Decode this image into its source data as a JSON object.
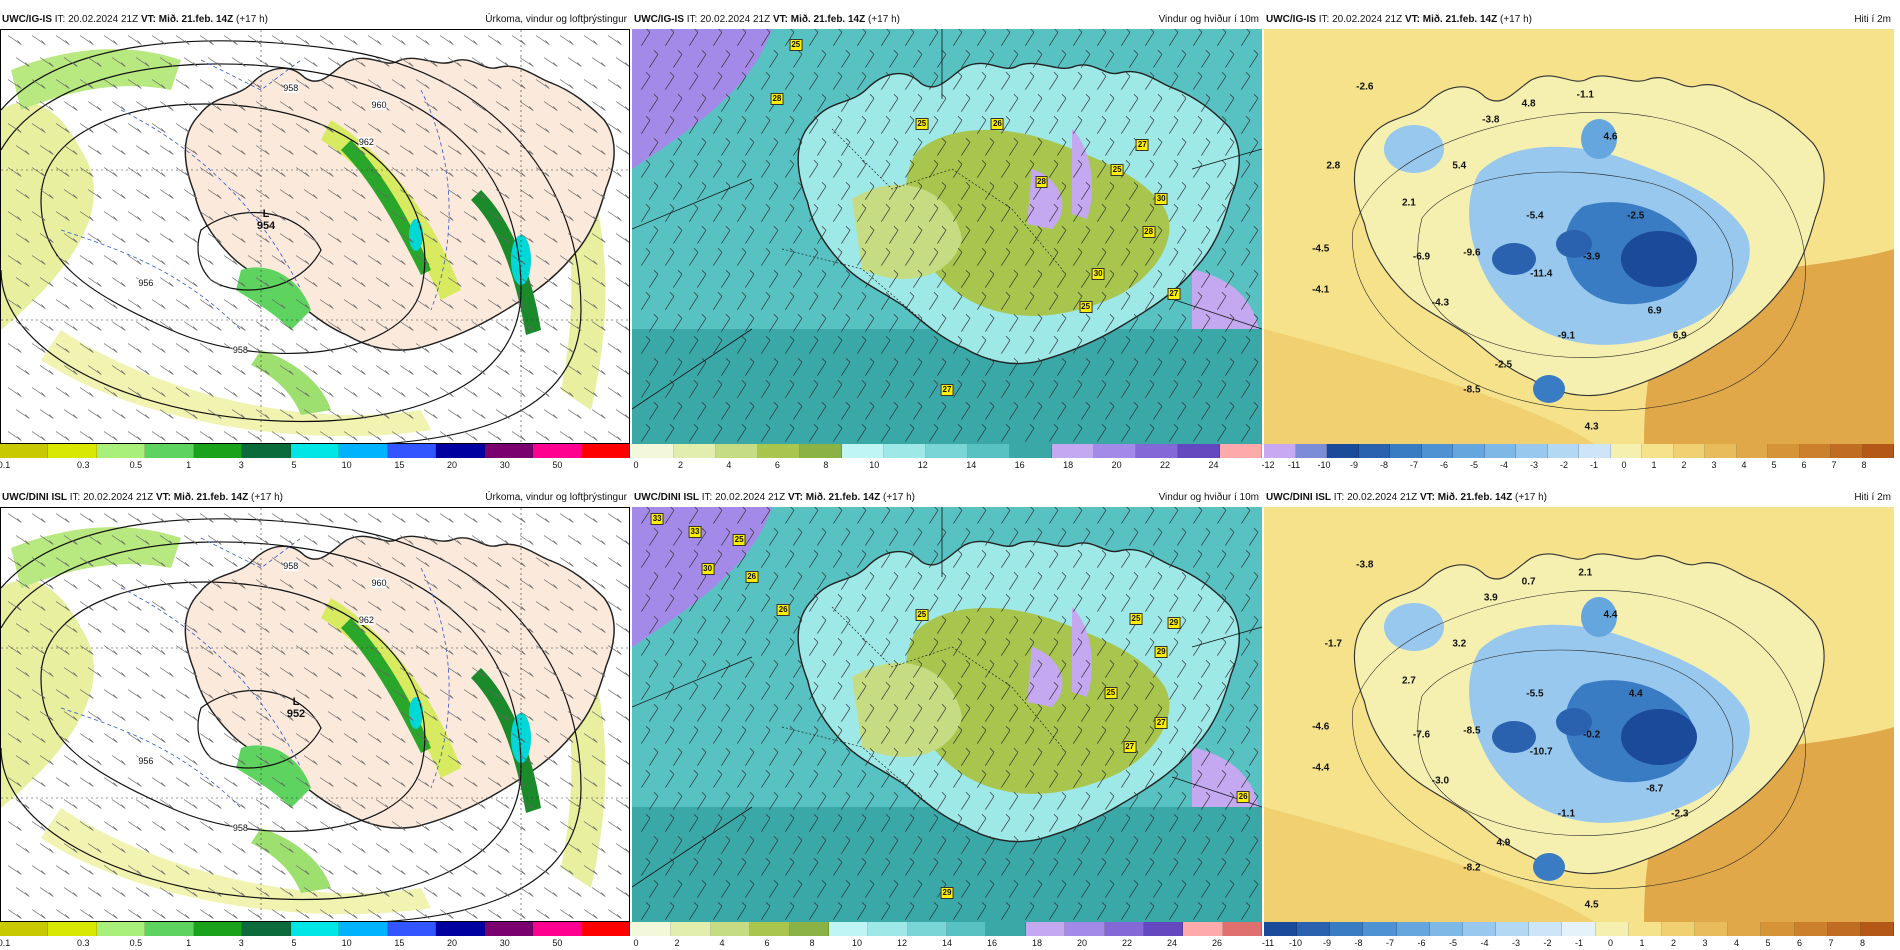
{
  "panels": [
    {
      "id": "p0",
      "model": "UWC/IG-IS",
      "it": "IT: 20.02.2024 21Z",
      "vt_label": "VT:",
      "vt": "Mið. 21.feb. 14Z",
      "lead": "(+17 h)",
      "title": "Úrkoma, vindur og loftþrýstingur",
      "type": "precip",
      "low": {
        "L": "L",
        "value": "954"
      },
      "isobar_labels": [
        "958",
        "960",
        "962",
        "956",
        "958"
      ],
      "colorbar": {
        "colors": [
          "#c9c900",
          "#d9e800",
          "#a8f07a",
          "#5fd35f",
          "#1aa31a",
          "#0b6b3a",
          "#00e5e5",
          "#00b3ff",
          "#3355ff",
          "#0000a0",
          "#7a0070",
          "#ff0090",
          "#ff0000"
        ],
        "ticks": [
          "0.1",
          "0.3",
          "0.5",
          "1",
          "3",
          "5",
          "10",
          "15",
          "20",
          "30",
          "50"
        ]
      }
    },
    {
      "id": "p1",
      "model": "UWC/IG-IS",
      "it": "IT: 20.02.2024 21Z",
      "vt_label": "VT:",
      "vt": "Mið. 21.feb. 14Z",
      "lead": "(+17 h)",
      "title": "Vindur og hviður í 10m",
      "type": "wind",
      "gusts": [
        "25",
        "28",
        "25",
        "26",
        "27",
        "28",
        "25",
        "30",
        "28",
        "30",
        "27",
        "25",
        "27"
      ],
      "colorbar": {
        "colors": [
          "#f3f8da",
          "#e2eeae",
          "#c6dc82",
          "#a8c64e",
          "#8bb244",
          "#bff5f5",
          "#9ee8e8",
          "#7ad6d6",
          "#58c2c2",
          "#3ba8a8",
          "#c4a8f0",
          "#a48ae8",
          "#8468d8",
          "#6448c0",
          "#ffaaaa"
        ],
        "ticks": [
          "0",
          "2",
          "4",
          "6",
          "8",
          "10",
          "12",
          "14",
          "16",
          "18",
          "20",
          "22",
          "24"
        ]
      }
    },
    {
      "id": "p2",
      "model": "UWC/IG-IS",
      "it": "IT: 20.02.2024 21Z",
      "vt_label": "VT:",
      "vt": "Mið. 21.feb. 14Z",
      "lead": "(+17 h)",
      "title": "Hiti í 2m",
      "type": "temp",
      "temps": [
        "-2.6",
        "-3.8",
        "4.8",
        "-1.1",
        "2.8",
        "5.4",
        "4.6",
        "2.1",
        "-5.4",
        "-2.5",
        "-4.5",
        "-6.9",
        "-9.6",
        "-11.4",
        "-3.9",
        "-4.1",
        "-4.3",
        "-9.1",
        "6.9",
        "6.9",
        "-2.5",
        "-8.5",
        "4.3"
      ],
      "colorbar": {
        "colors": [
          "#c8a8f0",
          "#7c8cd6",
          "#1c4a9a",
          "#2a62b0",
          "#3a7cc4",
          "#4f92d4",
          "#66a6de",
          "#7eb8e6",
          "#98c8ee",
          "#b2d8f4",
          "#cce6f8",
          "#f6f0b0",
          "#f5e28a",
          "#f0d070",
          "#e8bc5a",
          "#e0a848",
          "#d69438",
          "#cc802c",
          "#c06c22",
          "#b45818"
        ],
        "ticks": [
          "-12",
          "-11",
          "-10",
          "-9",
          "-8",
          "-7",
          "-6",
          "-5",
          "-4",
          "-3",
          "-2",
          "-1",
          "0",
          "1",
          "2",
          "3",
          "4",
          "5",
          "6",
          "7",
          "8"
        ]
      }
    },
    {
      "id": "p3",
      "model": "UWC/DINI ISL",
      "it": "IT: 20.02.2024 21Z",
      "vt_label": "VT:",
      "vt": "Mið. 21.feb. 14Z",
      "lead": "(+17 h)",
      "title": "Úrkoma, vindur og loftþrýstingur",
      "type": "precip",
      "low": {
        "L": "L",
        "value": "952"
      },
      "isobar_labels": [
        "958",
        "960",
        "962",
        "956",
        "958"
      ],
      "colorbar": {
        "colors": [
          "#c9c900",
          "#d9e800",
          "#a8f07a",
          "#5fd35f",
          "#1aa31a",
          "#0b6b3a",
          "#00e5e5",
          "#00b3ff",
          "#3355ff",
          "#0000a0",
          "#7a0070",
          "#ff0090",
          "#ff0000"
        ],
        "ticks": [
          "0.1",
          "0.3",
          "0.5",
          "1",
          "3",
          "5",
          "10",
          "15",
          "20",
          "30",
          "50"
        ]
      }
    },
    {
      "id": "p4",
      "model": "UWC/DINI ISL",
      "it": "IT: 20.02.2024 21Z",
      "vt_label": "VT:",
      "vt": "Mið. 21.feb. 14Z",
      "lead": "(+17 h)",
      "title": "Vindur og hviður í 10m",
      "type": "wind",
      "gusts": [
        "33",
        "33",
        "25",
        "30",
        "26",
        "26",
        "25",
        "25",
        "29",
        "29",
        "25",
        "27",
        "27",
        "26",
        "29"
      ],
      "colorbar": {
        "colors": [
          "#f3f8da",
          "#e2eeae",
          "#c6dc82",
          "#a8c64e",
          "#8bb244",
          "#bff5f5",
          "#9ee8e8",
          "#7ad6d6",
          "#58c2c2",
          "#3ba8a8",
          "#c4a8f0",
          "#a48ae8",
          "#8468d8",
          "#6448c0",
          "#ffaaaa",
          "#e07070"
        ],
        "ticks": [
          "0",
          "2",
          "4",
          "6",
          "8",
          "10",
          "12",
          "14",
          "16",
          "18",
          "20",
          "22",
          "24",
          "26"
        ]
      }
    },
    {
      "id": "p5",
      "model": "UWC/DINI ISL",
      "it": "IT: 20.02.2024 21Z",
      "vt_label": "VT:",
      "vt": "Mið. 21.feb. 14Z",
      "lead": "(+17 h)",
      "title": "Hiti í 2m",
      "type": "temp",
      "temps": [
        "-3.8",
        "3.9",
        "0.7",
        "2.1",
        "-1.7",
        "3.2",
        "4.4",
        "2.7",
        "-5.5",
        "4.4",
        "-4.6",
        "-7.6",
        "-8.5",
        "-10.7",
        "-0.2",
        "-4.4",
        "-3.0",
        "-1.1",
        "-8.7",
        "-2.3",
        "4.9",
        "-8.2",
        "4.5"
      ],
      "colorbar": {
        "colors": [
          "#1c4a9a",
          "#2a62b0",
          "#3a7cc4",
          "#4f92d4",
          "#66a6de",
          "#7eb8e6",
          "#98c8ee",
          "#b2d8f4",
          "#cce6f8",
          "#e6f2fa",
          "#f6f0b0",
          "#f5e28a",
          "#f0d070",
          "#e8bc5a",
          "#e0a848",
          "#d69438",
          "#cc802c",
          "#c06c22",
          "#b45818"
        ],
        "ticks": [
          "-11",
          "-10",
          "-9",
          "-8",
          "-7",
          "-6",
          "-5",
          "-4",
          "-3",
          "-2",
          "-1",
          "0",
          "1",
          "2",
          "3",
          "4",
          "5",
          "6",
          "7",
          "8"
        ]
      }
    }
  ]
}
